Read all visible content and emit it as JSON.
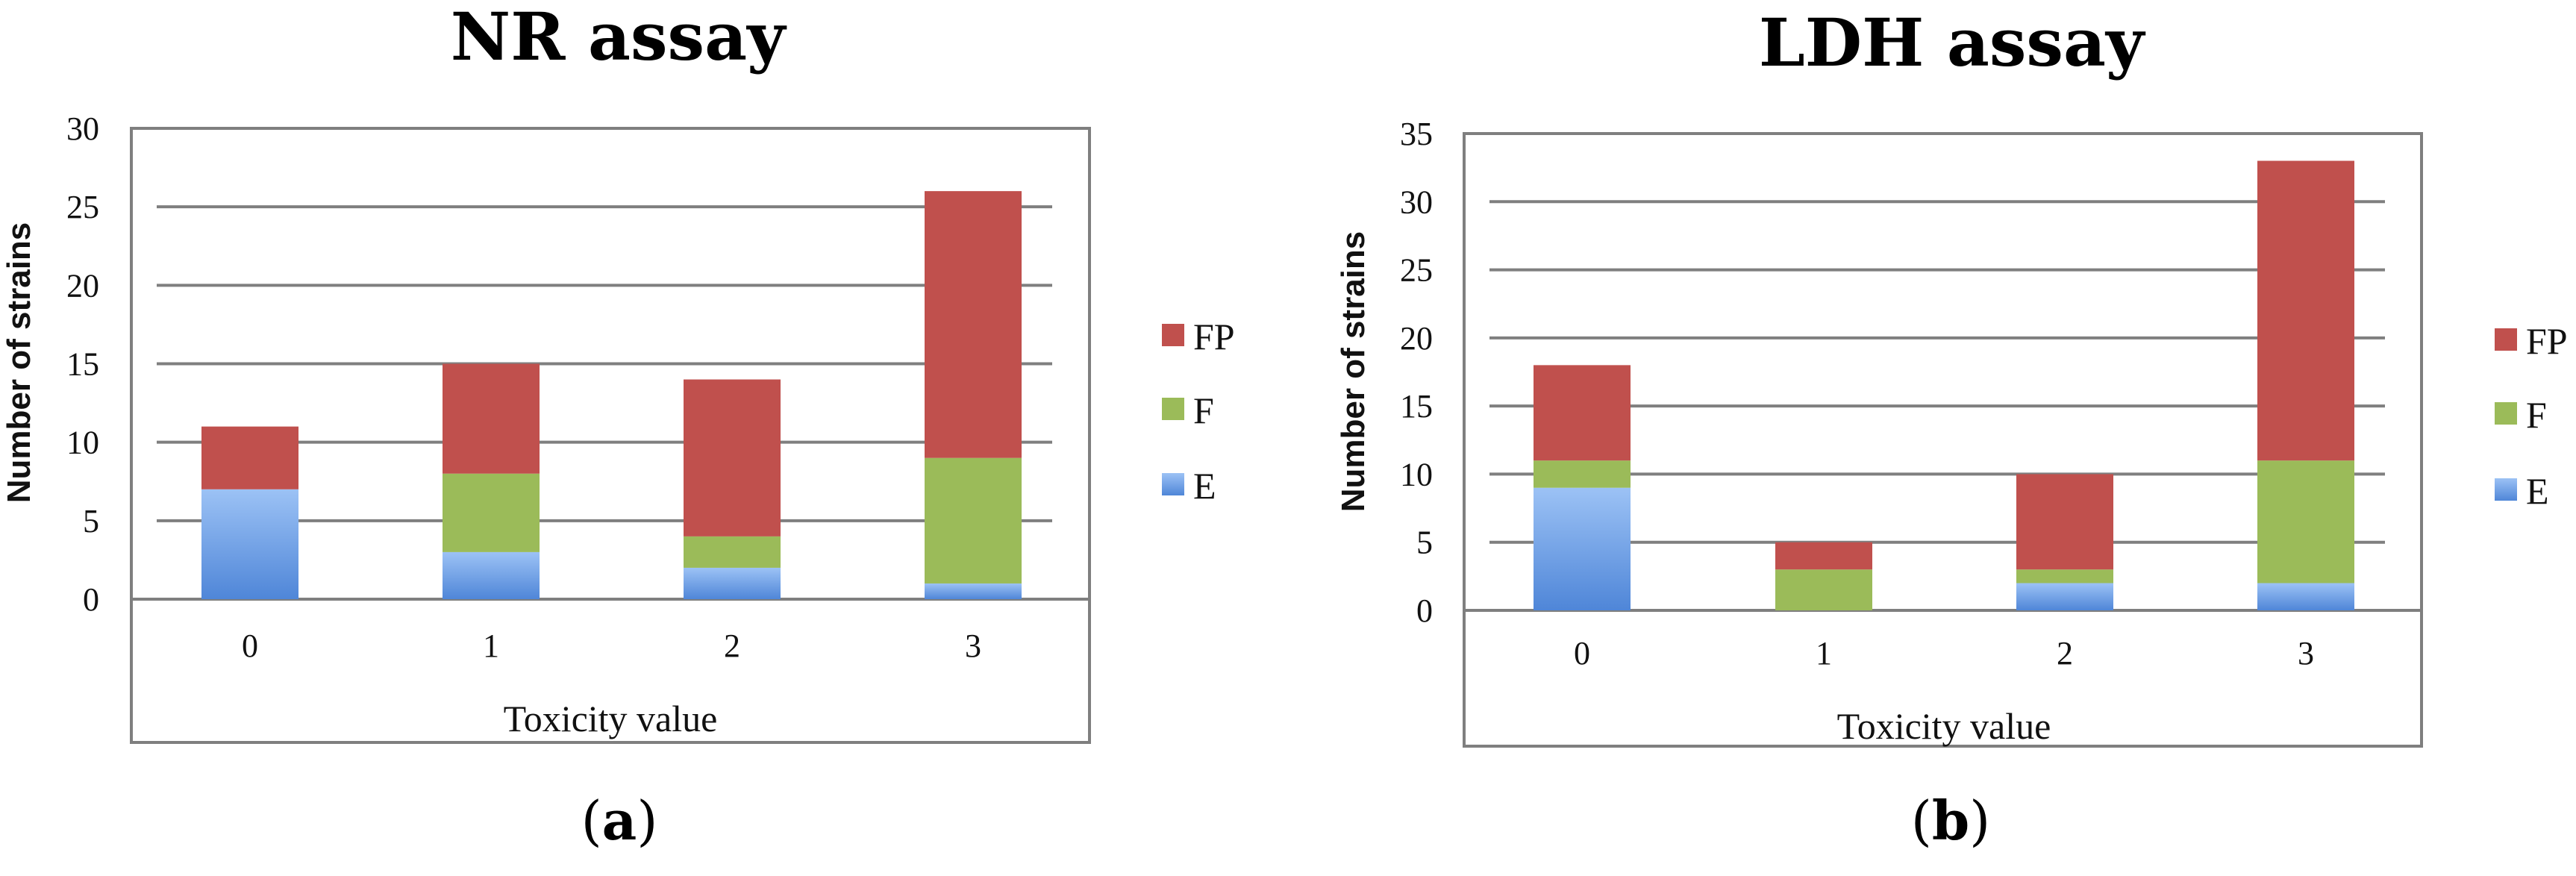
{
  "chart_data": [
    {
      "type": "bar",
      "stacked": true,
      "title": "NR assay",
      "caption": "a",
      "xlabel": "Toxicity value",
      "ylabel": "Number of strains",
      "categories": [
        "0",
        "1",
        "2",
        "3"
      ],
      "ylim": [
        0,
        30
      ],
      "yticks": [
        0,
        5,
        10,
        15,
        20,
        25,
        30
      ],
      "series": [
        {
          "name": "E",
          "values": [
            7,
            3,
            2,
            1
          ]
        },
        {
          "name": "F",
          "values": [
            0,
            5,
            2,
            8
          ]
        },
        {
          "name": "FP",
          "values": [
            4,
            7,
            10,
            17
          ]
        }
      ],
      "legend_order": [
        "FP",
        "F",
        "E"
      ],
      "legend_position": "right",
      "grid": true
    },
    {
      "type": "bar",
      "stacked": true,
      "title": "LDH assay",
      "caption": "b",
      "xlabel": "Toxicity value",
      "ylabel": "Number of strains",
      "categories": [
        "0",
        "1",
        "2",
        "3"
      ],
      "ylim": [
        0,
        35
      ],
      "yticks": [
        0,
        5,
        10,
        15,
        20,
        25,
        30,
        35
      ],
      "series": [
        {
          "name": "E",
          "values": [
            9,
            0,
            2,
            2
          ]
        },
        {
          "name": "F",
          "values": [
            2,
            3,
            1,
            9
          ]
        },
        {
          "name": "FP",
          "values": [
            7,
            2,
            7,
            22
          ]
        }
      ],
      "legend_order": [
        "FP",
        "F",
        "E"
      ],
      "legend_position": "right",
      "grid": true
    }
  ],
  "colors": {
    "E": "#4f86d8",
    "F": "#9bbb59",
    "FP": "#c0504d",
    "axis": "#7f7f7f"
  }
}
